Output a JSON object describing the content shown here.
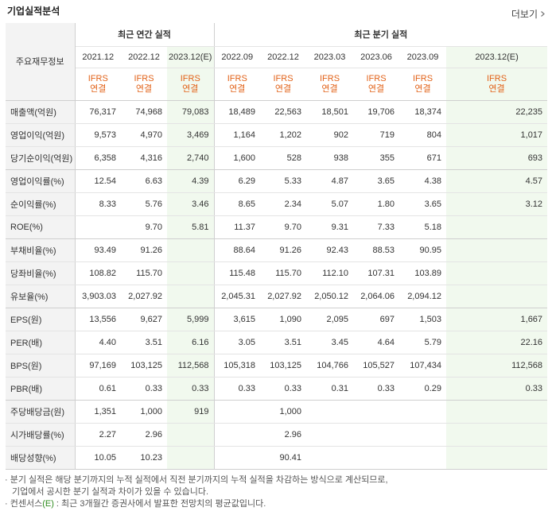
{
  "header": {
    "title": "기업실적분석",
    "more_label": "더보기"
  },
  "table": {
    "corner_label": "주요재무정보",
    "groups": {
      "annual": "최근 연간 실적",
      "quarterly": "최근 분기 실적"
    },
    "annual_periods": [
      "2021.12",
      "2022.12",
      "2023.12(E)"
    ],
    "quarterly_periods": [
      "2022.09",
      "2022.12",
      "2023.03",
      "2023.06",
      "2023.09",
      "2023.12(E)"
    ],
    "acct_top": "IFRS",
    "acct_bottom": "연결",
    "rows": [
      {
        "label": "매출액(억원)",
        "values": [
          "76,317",
          "74,968",
          "79,083",
          "18,489",
          "22,563",
          "18,501",
          "19,706",
          "18,374",
          "22,235"
        ]
      },
      {
        "label": "영업이익(억원)",
        "values": [
          "9,573",
          "4,970",
          "3,469",
          "1,164",
          "1,202",
          "902",
          "719",
          "804",
          "1,017"
        ]
      },
      {
        "label": "당기순이익(억원)",
        "values": [
          "6,358",
          "4,316",
          "2,740",
          "1,600",
          "528",
          "938",
          "355",
          "671",
          "693"
        ]
      },
      {
        "label": "영업이익률(%)",
        "values": [
          "12.54",
          "6.63",
          "4.39",
          "6.29",
          "5.33",
          "4.87",
          "3.65",
          "4.38",
          "4.57"
        ]
      },
      {
        "label": "순이익률(%)",
        "values": [
          "8.33",
          "5.76",
          "3.46",
          "8.65",
          "2.34",
          "5.07",
          "1.80",
          "3.65",
          "3.12"
        ]
      },
      {
        "label": "ROE(%)",
        "values": [
          "",
          "9.70",
          "5.81",
          "11.37",
          "9.70",
          "9.31",
          "7.33",
          "5.18",
          ""
        ]
      },
      {
        "label": "부채비율(%)",
        "values": [
          "93.49",
          "91.26",
          "",
          "88.64",
          "91.26",
          "92.43",
          "88.53",
          "90.95",
          ""
        ]
      },
      {
        "label": "당좌비율(%)",
        "values": [
          "108.82",
          "115.70",
          "",
          "115.48",
          "115.70",
          "112.10",
          "107.31",
          "103.89",
          ""
        ]
      },
      {
        "label": "유보율(%)",
        "values": [
          "3,903.03",
          "2,027.92",
          "",
          "2,045.31",
          "2,027.92",
          "2,050.12",
          "2,064.06",
          "2,094.12",
          ""
        ]
      },
      {
        "label": "EPS(원)",
        "values": [
          "13,556",
          "9,627",
          "5,999",
          "3,615",
          "1,090",
          "2,095",
          "697",
          "1,503",
          "1,667"
        ]
      },
      {
        "label": "PER(배)",
        "values": [
          "4.40",
          "3.51",
          "6.16",
          "3.05",
          "3.51",
          "3.45",
          "4.64",
          "5.79",
          "22.16"
        ]
      },
      {
        "label": "BPS(원)",
        "values": [
          "97,169",
          "103,125",
          "112,568",
          "105,318",
          "103,125",
          "104,766",
          "105,527",
          "107,434",
          "112,568"
        ]
      },
      {
        "label": "PBR(배)",
        "values": [
          "0.61",
          "0.33",
          "0.33",
          "0.33",
          "0.33",
          "0.31",
          "0.33",
          "0.29",
          "0.33"
        ]
      },
      {
        "label": "주당배당금(원)",
        "values": [
          "1,351",
          "1,000",
          "919",
          "",
          "1,000",
          "",
          "",
          "",
          ""
        ]
      },
      {
        "label": "시가배당률(%)",
        "values": [
          "2.27",
          "2.96",
          "",
          "",
          "2.96",
          "",
          "",
          "",
          ""
        ]
      },
      {
        "label": "배당성향(%)",
        "values": [
          "10.05",
          "10.23",
          "",
          "",
          "90.41",
          "",
          "",
          "",
          ""
        ]
      }
    ]
  },
  "notes": {
    "line1": "· 분기 실적은 해당 분기까지의 누적 실적에서 직전 분기까지의 누적 실적을 차감하는 방식으로 계산되므로,",
    "line2": "기업에서 공시한 분기 실적과 차이가 있을 수 있습니다.",
    "line3_prefix": "· 컨센서스",
    "line3_mark": "(E)",
    "line3_suffix": " : 최근 3개월간 증권사에서 발표한 전망치의 평균값입니다."
  },
  "colors": {
    "accent_orange": "#e2631a",
    "estimate_bg": "#f1f9ee",
    "header_bg": "#f3f3f3",
    "estimate_mark_green": "#2e8b1e"
  }
}
